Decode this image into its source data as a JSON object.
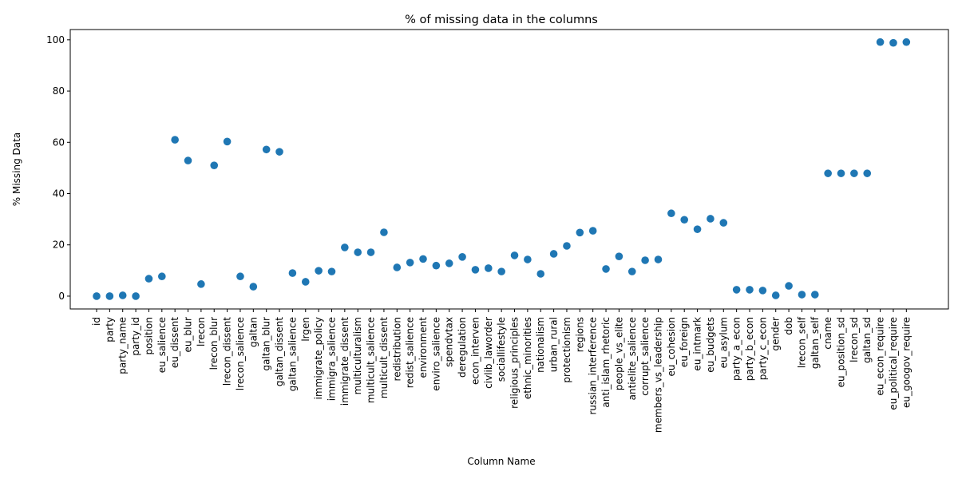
{
  "chart_data": {
    "type": "scatter",
    "title": "% of missing data in the columns",
    "xlabel": "Column Name",
    "ylabel": "% Missing Data",
    "ylim": [
      -5,
      104
    ],
    "yticks": [
      0,
      20,
      40,
      60,
      80,
      100
    ],
    "grid": false,
    "marker_color": "#1f77b4",
    "categories": [
      "id",
      "party",
      "party_name",
      "party_id",
      "position",
      "eu_salience",
      "eu_dissent",
      "eu_blur",
      "lrecon",
      "lrecon_blur",
      "lrecon_dissent",
      "lrecon_salience",
      "galtan",
      "galtan_blur",
      "galtan_dissent",
      "galtan_salience",
      "lrgen",
      "immigrate_policy",
      "immigra_salience",
      "immigrate_dissent",
      "multiculturalism",
      "multicult_salience",
      "multicult_dissent",
      "redistribution",
      "redist_salience",
      "environment",
      "enviro_salience",
      "spendvtax",
      "deregulation",
      "econ_interven",
      "civlib_laworder",
      "sociallifestyle",
      "religious_principles",
      "ethnic_minorities",
      "nationalism",
      "urban_rural",
      "protectionism",
      "regions",
      "russian_interference",
      "anti_islam_rhetoric",
      "people_vs_elite",
      "antielite_salience",
      "corrupt_salience",
      "members_vs_leadership",
      "eu_cohesion",
      "eu_foreign",
      "eu_intmark",
      "eu_budgets",
      "eu_asylum",
      "party_a_econ",
      "party_b_econ",
      "party_c_econ",
      "gender",
      "dob",
      "lrecon_self",
      "galtan_self",
      "cname",
      "eu_position_sd",
      "lrecon_sd",
      "galtan_sd",
      "eu_econ_require",
      "eu_political_require",
      "eu_googov_require"
    ],
    "values": [
      0,
      0,
      0.3,
      0,
      6.8,
      7.7,
      61,
      52.9,
      4.7,
      51,
      60.3,
      7.7,
      3.7,
      57.2,
      56.3,
      9,
      5.6,
      9.9,
      9.6,
      19,
      17.1,
      17.1,
      24.9,
      11.2,
      13.1,
      14.5,
      11.9,
      12.8,
      15.3,
      10.3,
      10.9,
      9.6,
      15.9,
      14.3,
      8.7,
      16.5,
      19.6,
      24.8,
      25.5,
      10.6,
      15.5,
      9.6,
      14,
      14.3,
      32.3,
      29.8,
      26.1,
      30.2,
      28.6,
      2.5,
      2.5,
      2.2,
      0.3,
      4,
      0.6,
      0.6,
      47.9,
      47.9,
      47.9,
      47.9,
      99.1,
      98.8,
      99.1
    ]
  }
}
